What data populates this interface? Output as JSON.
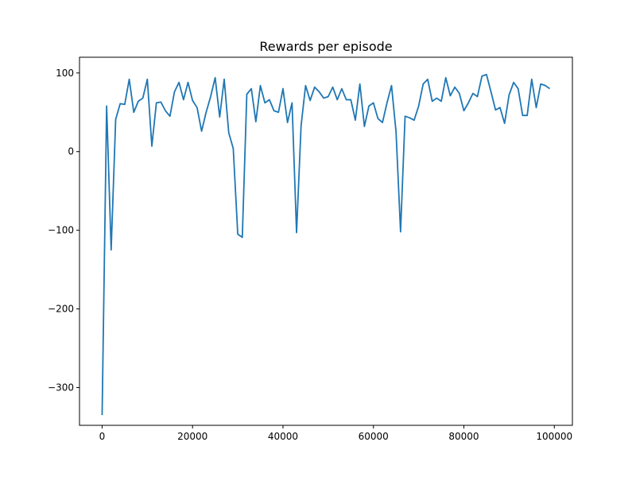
{
  "chart_data": {
    "type": "line",
    "title": "Rewards per episode",
    "xlabel": "",
    "ylabel": "",
    "xlim": [
      -5000,
      104000
    ],
    "ylim": [
      -348,
      120
    ],
    "x_ticks": [
      0,
      20000,
      40000,
      60000,
      80000,
      100000
    ],
    "y_ticks": [
      -300,
      -200,
      -100,
      0,
      100
    ],
    "x_tick_labels": [
      "0",
      "20000",
      "40000",
      "60000",
      "80000",
      "100000"
    ],
    "y_tick_labels": [
      "−300",
      "−200",
      "−100",
      "0",
      "100"
    ],
    "grid": false,
    "line_color": "#1f77b4",
    "x": [
      0,
      1000,
      2000,
      3000,
      4000,
      5000,
      6000,
      7000,
      8000,
      9000,
      10000,
      11000,
      12000,
      13000,
      14000,
      15000,
      16000,
      17000,
      18000,
      19000,
      20000,
      21000,
      22000,
      23000,
      24000,
      25000,
      26000,
      27000,
      28000,
      29000,
      30000,
      31000,
      32000,
      33000,
      34000,
      35000,
      36000,
      37000,
      38000,
      39000,
      40000,
      41000,
      42000,
      43000,
      44000,
      45000,
      46000,
      47000,
      48000,
      49000,
      50000,
      51000,
      52000,
      53000,
      54000,
      55000,
      56000,
      57000,
      58000,
      59000,
      60000,
      61000,
      62000,
      63000,
      64000,
      65000,
      66000,
      67000,
      68000,
      69000,
      70000,
      71000,
      72000,
      73000,
      74000,
      75000,
      76000,
      77000,
      78000,
      79000,
      80000,
      81000,
      82000,
      83000,
      84000,
      85000,
      86000,
      87000,
      88000,
      89000,
      90000,
      91000,
      92000,
      93000,
      94000,
      95000,
      96000,
      97000,
      98000,
      99000
    ],
    "series": [
      {
        "values": [
          -335,
          58,
          -125,
          41,
          61,
          60,
          92,
          50,
          64,
          68,
          92,
          7,
          62,
          63,
          52,
          45,
          76,
          88,
          66,
          88,
          65,
          56,
          26,
          50,
          70,
          94,
          44,
          92,
          24,
          4,
          -105,
          -109,
          73,
          80,
          38,
          84,
          62,
          66,
          52,
          50,
          80,
          37,
          62,
          -103,
          33,
          84,
          65,
          82,
          76,
          68,
          70,
          82,
          66,
          80,
          66,
          66,
          40,
          86,
          32,
          58,
          62,
          42,
          37,
          62,
          84,
          25,
          -102,
          45,
          43,
          40,
          58,
          86,
          92,
          64,
          68,
          64,
          94,
          71,
          82,
          74,
          52,
          62,
          74,
          70,
          96,
          98,
          76,
          53,
          56,
          36,
          72,
          88,
          80,
          46,
          46,
          92,
          56,
          86,
          84,
          80
        ]
      }
    ]
  }
}
